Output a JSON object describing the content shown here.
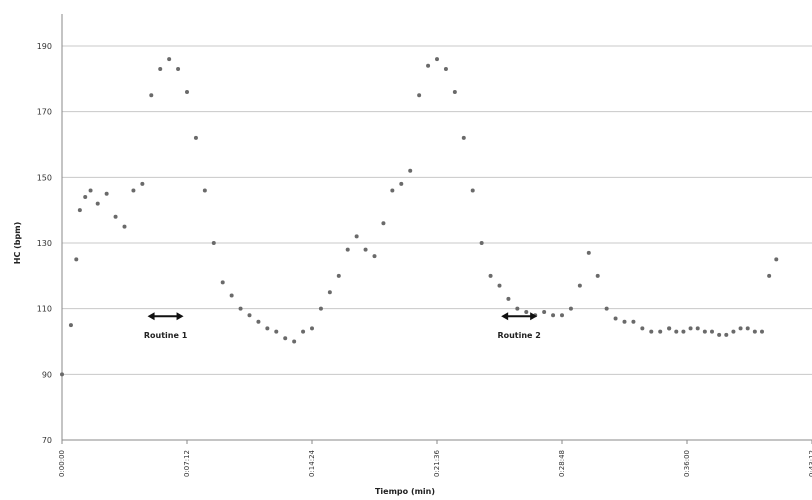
{
  "chart_data": {
    "type": "scatter",
    "title": "",
    "ylabel": "HC (bpm)",
    "xlabel": "Tiempo (min)",
    "ylim": [
      70,
      190
    ],
    "y_ticks": [
      70,
      90,
      110,
      130,
      150,
      170,
      190
    ],
    "y_tick_labels": [
      "70",
      "90",
      "110",
      "130",
      "150",
      "170",
      "190"
    ],
    "xlim": [
      0,
      42
    ],
    "x_ticks": [
      0,
      7,
      14,
      21,
      28,
      35,
      42
    ],
    "x_tick_labels": [
      "0:00:00",
      "0:07:12",
      "0:14:24",
      "0:21:36",
      "0:28:48",
      "0:36:00",
      "0:43:12"
    ],
    "grid": true,
    "series": [
      {
        "color": "#6a6a6a",
        "x": [
          0.0,
          0.5,
          0.8,
          1.0,
          1.3,
          1.6,
          2.0,
          2.5,
          3.0,
          3.5,
          4.0,
          4.5,
          5.0,
          5.5,
          6.0,
          6.5,
          7.0,
          7.5,
          8.0,
          8.5,
          9.0,
          9.5,
          10.0,
          10.5,
          11.0,
          11.5,
          12.0,
          12.5,
          13.0,
          13.5,
          14.0,
          14.5,
          15.0,
          15.5,
          16.0,
          16.5,
          17.0,
          17.5,
          18.0,
          18.5,
          19.0,
          19.5,
          20.0,
          20.5,
          21.0,
          21.5,
          22.0,
          22.5,
          23.0,
          23.5,
          24.0,
          24.5,
          25.0,
          25.5,
          26.0,
          26.5,
          27.0,
          27.5,
          28.0,
          28.5,
          29.0,
          29.5,
          30.0,
          30.5,
          31.0,
          31.5,
          32.0,
          32.5,
          33.0,
          33.5,
          34.0
        ],
        "y": [
          90,
          105,
          125,
          140,
          144,
          146,
          142,
          145,
          138,
          135,
          146,
          148,
          175,
          183,
          186,
          183,
          176,
          162,
          146,
          130,
          118,
          114,
          110,
          108,
          106,
          104,
          103,
          101,
          100,
          103,
          104,
          110,
          115,
          120,
          128,
          132,
          128,
          126,
          136,
          146,
          148,
          152,
          175,
          184,
          186,
          183,
          176,
          162,
          146,
          130,
          120,
          117,
          113,
          110,
          109,
          108,
          109,
          108,
          108,
          110,
          117,
          127,
          120,
          110,
          107,
          106,
          106,
          104,
          103,
          103,
          104
        ]
      },
      {
        "color": "#6a6a6a",
        "x": [
          34.0,
          34.4,
          34.8,
          35.2,
          35.6,
          36.0,
          36.4,
          36.8,
          37.2,
          37.6,
          38.0,
          38.4,
          38.8,
          39.2,
          39.6,
          40.0
        ],
        "y": [
          104,
          103,
          103,
          104,
          104,
          103,
          103,
          102,
          102,
          103,
          104,
          104,
          103,
          103,
          120,
          125
        ]
      }
    ],
    "annotations": [
      {
        "text": "Routine 1",
        "x": 5.8,
        "y": 101
      },
      {
        "text": "Routine 2",
        "x": 25.6,
        "y": 101
      }
    ]
  }
}
